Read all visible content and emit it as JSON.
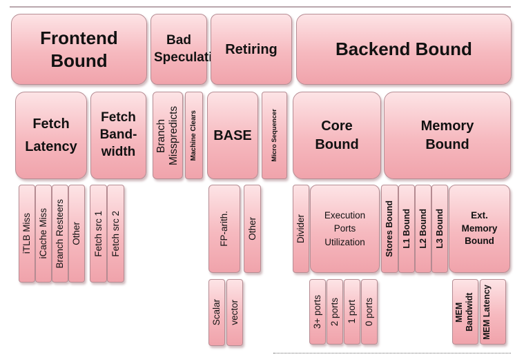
{
  "level1": {
    "frontend_bound": "Frontend Bound",
    "bad_speculation": "Bad Speculation",
    "retiring": "Retiring",
    "backend_bound": "Backend Bound"
  },
  "level2": {
    "fetch_latency": "Fetch Latency",
    "fetch_bandwidth": "Fetch Band-width",
    "branch_mispredicts": "Branch Misspredicts",
    "machine_clears": "Machine Clears",
    "base": "BASE",
    "micro_sequencer": "Micro Sequencer",
    "core_bound": "Core Bound",
    "memory_bound": "Memory Bound"
  },
  "level3": {
    "itlb_miss": "iTLB Miss",
    "icache_miss": "iCache Miss",
    "branch_resteers": "Branch Resteers",
    "frontend_other": "Other",
    "fetch_src_1": "Fetch src 1",
    "fetch_src_2": "Fetch src 2",
    "fp_arith": "FP-arith.",
    "base_other": "Other",
    "divider": "Divider",
    "execution_ports_utilization": "Execution Ports Utilization",
    "stores_bound": "Stores Bound",
    "l1_bound": "L1 Bound",
    "l2_bound": "L2 Bound",
    "l3_bound": "L3 Bound",
    "ext_memory_bound": "Ext. Memory Bound"
  },
  "level4": {
    "scalar": "Scalar",
    "vector": "vector",
    "ports_3plus": "3+ ports",
    "ports_2": "2 ports",
    "port_1": "1 port",
    "ports_0": "0 ports",
    "mem_bandwidth": "MEM Bandwidt",
    "mem_latency": "MEM Latency"
  }
}
